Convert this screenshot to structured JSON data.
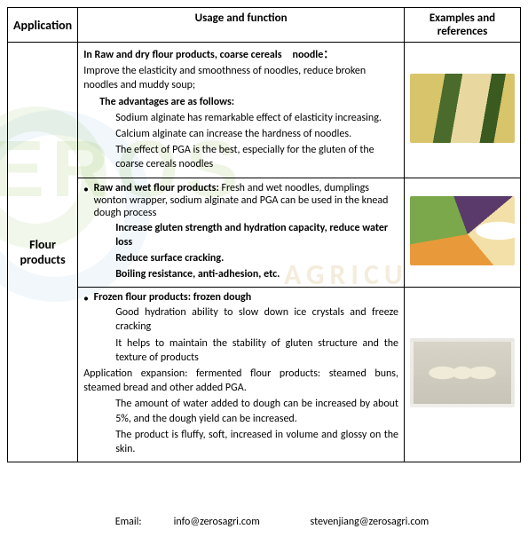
{
  "table": {
    "headers": {
      "application": "Application",
      "usage": "Usage and function",
      "examples": "Examples and references"
    },
    "application_label": "Flour products",
    "rows": [
      {
        "title": "In Raw and dry flour products, coarse cereals noodle：",
        "intro": "Improve the elasticity and smoothness of noodles, reduce broken noodles and muddy soup;",
        "adv_head": "The advantages are as follows:",
        "adv": [
          "Sodium alginate has remarkable effect of elasticity increasing.",
          "Calcium alginate can increase the hardness of noodles.",
          "The effect of PGA is the best, especially for the gluten of the coarse cereals noodles"
        ]
      },
      {
        "title": "Raw and wet flour products:",
        "title_rest": "Fresh and wet noodles, dumplings wonton wrapper, sodium alginate and PGA can be used in the knead dough process",
        "points": [
          "Increase gluten strength and hydration capacity, reduce water loss",
          "Reduce surface cracking.",
          "Boiling resistance, anti-adhesion, etc."
        ]
      },
      {
        "title": "Frozen flour products: frozen dough",
        "points1": [
          "Good hydration ability to slow down ice crystals and freeze cracking",
          "It helps to maintain the stability of gluten structure and the texture of products"
        ],
        "expansion": "Application expansion: fermented flour products: steamed buns, steamed bread and other added PGA.",
        "points2": [
          "The amount of water added to dough can be increased by about 5%, and the dough yield can be increased.",
          "The product is fluffy, soft, increased in volume and glossy on the skin."
        ]
      }
    ]
  },
  "watermark": {
    "line1": "EROS",
    "line2": "AGRICU"
  },
  "footer": {
    "email1_label": "Email:",
    "email1": "info@zerosagri.com",
    "email2": "stevenjiang@zerosagri.com"
  },
  "colors": {
    "border": "#000000",
    "wm_green": "rgba(140,190,80,0.15)",
    "wm_amber": "rgba(200,160,80,0.2)"
  }
}
